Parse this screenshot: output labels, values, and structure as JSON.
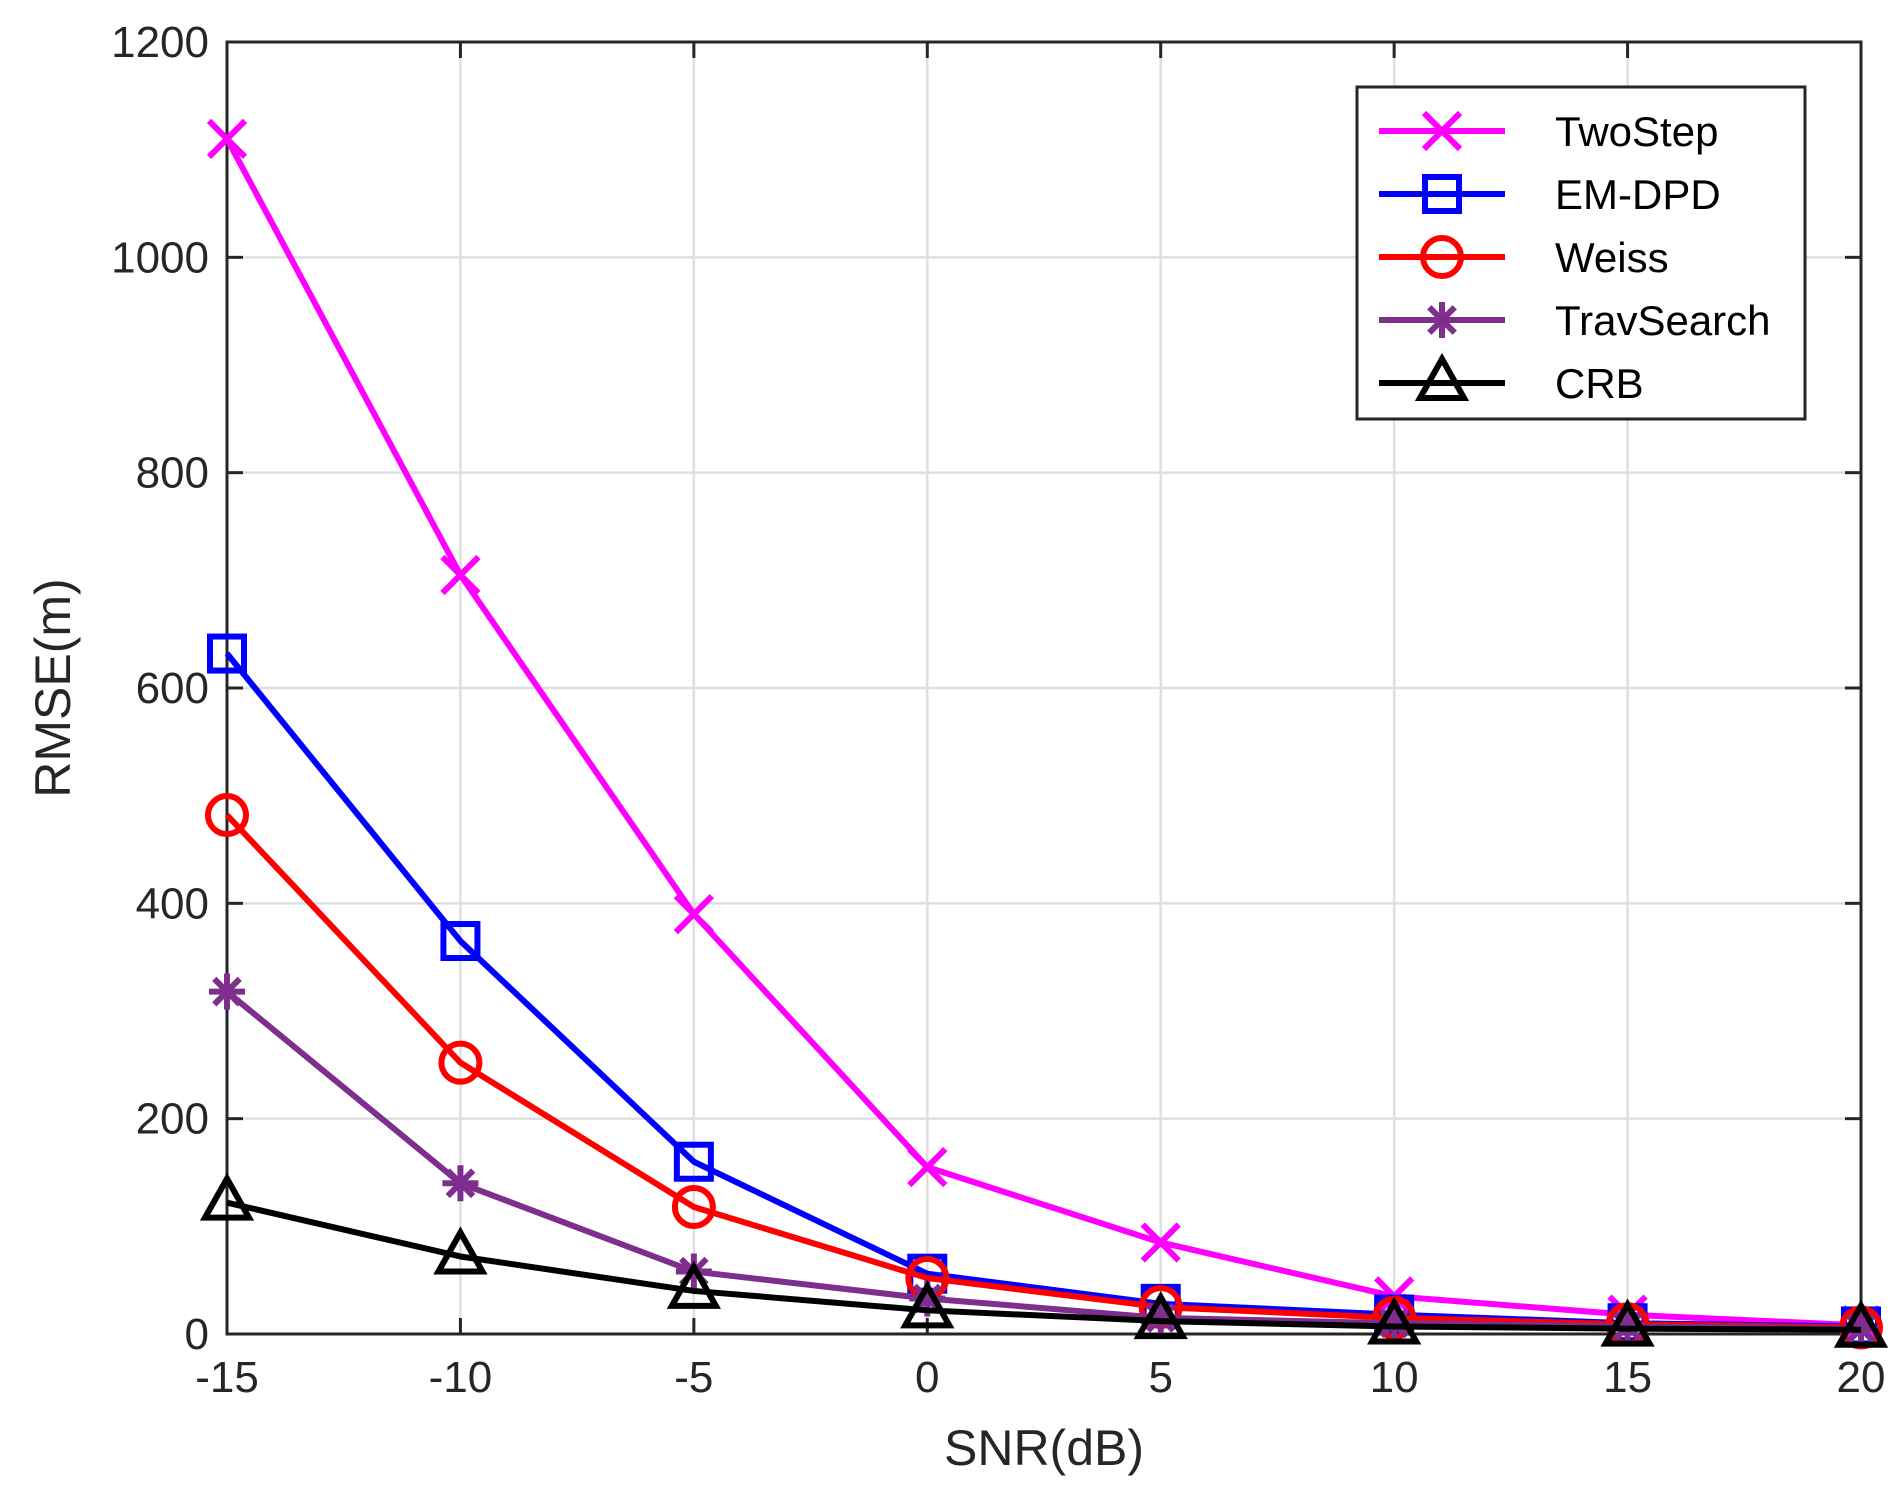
{
  "chart_data": {
    "type": "line",
    "title": "",
    "xlabel": "SNR(dB)",
    "ylabel": "RMSE(m)",
    "x": [
      -15,
      -10,
      -5,
      0,
      5,
      10,
      15,
      20
    ],
    "xlim": [
      -15,
      20
    ],
    "ylim": [
      0,
      1200
    ],
    "xticks": [
      "-15",
      "-10",
      "-5",
      "0",
      "5",
      "10",
      "15",
      "20"
    ],
    "yticks": [
      "0",
      "200",
      "400",
      "600",
      "800",
      "1000",
      "1200"
    ],
    "grid": true,
    "legend_position": "top-right",
    "series": [
      {
        "name": "TwoStep",
        "color": "#ff00ff",
        "marker": "x",
        "values": [
          1110,
          705,
          390,
          155,
          85,
          35,
          18,
          8
        ]
      },
      {
        "name": "EM-DPD",
        "color": "#0000ff",
        "marker": "square",
        "values": [
          632,
          365,
          160,
          56,
          28,
          18,
          10,
          7
        ]
      },
      {
        "name": "Weiss",
        "color": "#ff0000",
        "marker": "circle",
        "values": [
          482,
          252,
          118,
          52,
          25,
          15,
          9,
          6
        ]
      },
      {
        "name": "TravSearch",
        "color": "#7e2f8e",
        "marker": "asterisk",
        "values": [
          318,
          140,
          58,
          33,
          15,
          10,
          7,
          5
        ]
      },
      {
        "name": "CRB",
        "color": "#000000",
        "marker": "triangle",
        "values": [
          122,
          72,
          40,
          22,
          12,
          7,
          5,
          4
        ]
      }
    ]
  }
}
